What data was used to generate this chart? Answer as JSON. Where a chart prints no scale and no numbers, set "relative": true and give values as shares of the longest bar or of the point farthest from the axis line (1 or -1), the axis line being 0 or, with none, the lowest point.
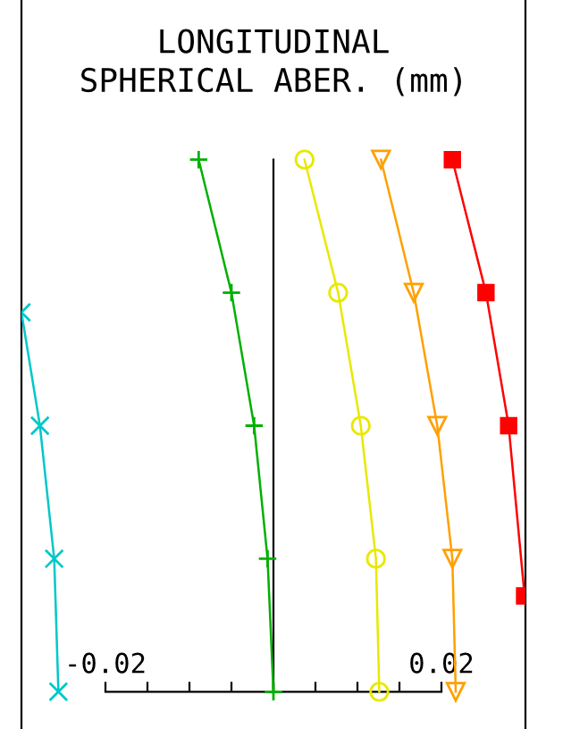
{
  "chart_data": {
    "type": "line",
    "title": "LONGITUDINAL\nSPHERICAL ABER. (mm)",
    "xlim": [
      -0.03,
      0.03
    ],
    "relative": true,
    "xticks": [
      -0.02,
      {
        "value": -0.015,
        "label": null
      },
      {
        "value": -0.01,
        "label": null
      },
      {
        "value": -0.005,
        "label": null
      },
      {
        "value": 0,
        "label": null
      },
      {
        "value": 0.005,
        "label": null
      },
      {
        "value": 0.01,
        "label": null
      },
      {
        "value": 0.015,
        "label": null
      },
      0.02
    ],
    "line_style": "solid",
    "series": [
      {
        "color": "#00c8c8",
        "marker": "cross",
        "x": [
          -0.03,
          -0.0278,
          -0.0261,
          -0.0256
        ],
        "values": [
          0.713,
          0.5,
          0.25,
          0
        ]
      },
      {
        "color": "#00b000",
        "marker": "plus",
        "x": [
          -0.0089,
          -0.005,
          -0.0023,
          -0.0007,
          0
        ],
        "values": [
          1,
          0.75,
          0.5,
          0.25,
          0
        ]
      },
      {
        "color": "#e8e800",
        "marker": "circle",
        "x": [
          0.0037,
          0.0077,
          0.0104,
          0.0122,
          0.0126
        ],
        "values": [
          1,
          0.75,
          0.5,
          0.25,
          0
        ]
      },
      {
        "color": "#ffa000",
        "marker": "triangle",
        "x": [
          0.0128,
          0.0167,
          0.0195,
          0.0213,
          0.0217
        ],
        "values": [
          1,
          0.75,
          0.5,
          0.25,
          0
        ]
      },
      {
        "color": "#ff0000",
        "marker": "square",
        "x": [
          0.0213,
          0.0253,
          0.028,
          0.0299
        ],
        "values": [
          1,
          0.75,
          0.5,
          0.18
        ]
      }
    ]
  }
}
